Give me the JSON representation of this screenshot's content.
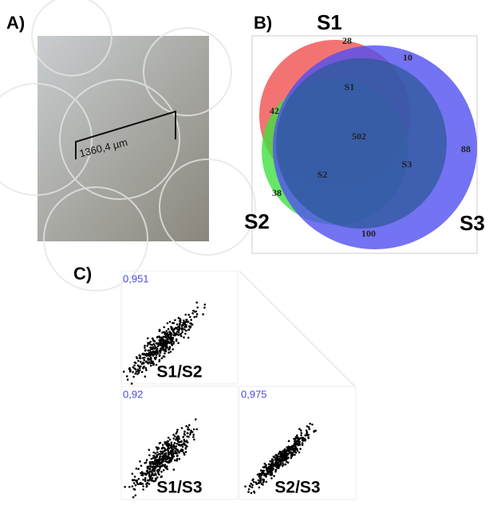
{
  "panel_a": {
    "label": "A)",
    "scale_bar": "1360,4 µm"
  },
  "panel_b": {
    "label": "B)",
    "sets": [
      "S1",
      "S2",
      "S3"
    ],
    "regions": {
      "s1_only": 28,
      "s1_s3": 10,
      "s1_s2": 42,
      "all": 502,
      "s3_only": 88,
      "s2_only": 38,
      "s2_s3": 100
    },
    "inner_labels": [
      "S1",
      "S2",
      "S3"
    ]
  },
  "panel_c": {
    "label": "C)",
    "plots": [
      {
        "correlation": "0,951",
        "pair": "S1/S2"
      },
      {
        "correlation": "0,92",
        "pair": "S1/S3"
      },
      {
        "correlation": "0,975",
        "pair": "S2/S3"
      }
    ]
  }
}
